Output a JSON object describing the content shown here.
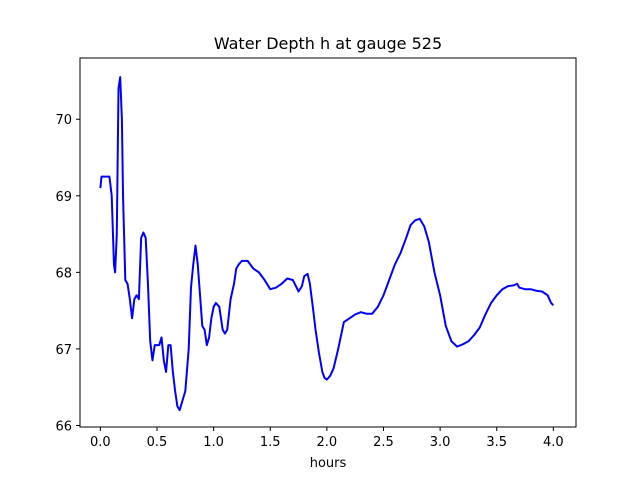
{
  "chart_data": {
    "type": "line",
    "title": "Water Depth h at gauge 525",
    "xlabel": "hours",
    "ylabel": "",
    "xlim": [
      -0.18,
      4.2
    ],
    "ylim": [
      65.98,
      70.8
    ],
    "xticks": [
      0.0,
      0.5,
      1.0,
      1.5,
      2.0,
      2.5,
      3.0,
      3.5,
      4.0
    ],
    "xtick_labels": [
      "0.0",
      "0.5",
      "1.0",
      "1.5",
      "2.0",
      "2.5",
      "3.0",
      "3.5",
      "4.0"
    ],
    "yticks": [
      66,
      67,
      68,
      69,
      70
    ],
    "ytick_labels": [
      "66",
      "67",
      "68",
      "69",
      "70"
    ],
    "grid": false,
    "line_color": "#0000ff",
    "series": [
      {
        "points": [
          [
            0.0,
            69.1
          ],
          [
            0.01,
            69.25
          ],
          [
            0.05,
            69.25
          ],
          [
            0.08,
            69.25
          ],
          [
            0.1,
            69.0
          ],
          [
            0.12,
            68.1
          ],
          [
            0.13,
            68.0
          ],
          [
            0.145,
            68.5
          ],
          [
            0.16,
            70.4
          ],
          [
            0.175,
            70.55
          ],
          [
            0.19,
            70.0
          ],
          [
            0.2,
            69.0
          ],
          [
            0.22,
            67.9
          ],
          [
            0.24,
            67.85
          ],
          [
            0.26,
            67.65
          ],
          [
            0.28,
            67.4
          ],
          [
            0.3,
            67.65
          ],
          [
            0.32,
            67.7
          ],
          [
            0.34,
            67.65
          ],
          [
            0.36,
            68.45
          ],
          [
            0.38,
            68.52
          ],
          [
            0.4,
            68.45
          ],
          [
            0.42,
            67.85
          ],
          [
            0.44,
            67.1
          ],
          [
            0.46,
            66.85
          ],
          [
            0.48,
            67.05
          ],
          [
            0.5,
            67.05
          ],
          [
            0.52,
            67.05
          ],
          [
            0.54,
            67.15
          ],
          [
            0.56,
            66.85
          ],
          [
            0.58,
            66.7
          ],
          [
            0.6,
            67.05
          ],
          [
            0.62,
            67.05
          ],
          [
            0.64,
            66.7
          ],
          [
            0.66,
            66.45
          ],
          [
            0.68,
            66.25
          ],
          [
            0.7,
            66.2
          ],
          [
            0.72,
            66.3
          ],
          [
            0.75,
            66.45
          ],
          [
            0.78,
            67.0
          ],
          [
            0.8,
            67.8
          ],
          [
            0.82,
            68.1
          ],
          [
            0.84,
            68.35
          ],
          [
            0.86,
            68.1
          ],
          [
            0.88,
            67.7
          ],
          [
            0.9,
            67.3
          ],
          [
            0.92,
            67.25
          ],
          [
            0.94,
            67.05
          ],
          [
            0.96,
            67.15
          ],
          [
            0.98,
            67.4
          ],
          [
            1.0,
            67.55
          ],
          [
            1.02,
            67.6
          ],
          [
            1.05,
            67.55
          ],
          [
            1.08,
            67.25
          ],
          [
            1.1,
            67.2
          ],
          [
            1.12,
            67.25
          ],
          [
            1.15,
            67.65
          ],
          [
            1.18,
            67.85
          ],
          [
            1.2,
            68.05
          ],
          [
            1.22,
            68.1
          ],
          [
            1.25,
            68.15
          ],
          [
            1.3,
            68.15
          ],
          [
            1.35,
            68.05
          ],
          [
            1.4,
            68.0
          ],
          [
            1.45,
            67.9
          ],
          [
            1.5,
            67.78
          ],
          [
            1.55,
            67.8
          ],
          [
            1.6,
            67.85
          ],
          [
            1.65,
            67.92
          ],
          [
            1.7,
            67.9
          ],
          [
            1.75,
            67.75
          ],
          [
            1.78,
            67.82
          ],
          [
            1.8,
            67.95
          ],
          [
            1.83,
            67.98
          ],
          [
            1.85,
            67.85
          ],
          [
            1.88,
            67.5
          ],
          [
            1.9,
            67.25
          ],
          [
            1.93,
            66.95
          ],
          [
            1.96,
            66.7
          ],
          [
            1.98,
            66.62
          ],
          [
            2.0,
            66.6
          ],
          [
            2.03,
            66.65
          ],
          [
            2.06,
            66.75
          ],
          [
            2.1,
            67.0
          ],
          [
            2.15,
            67.35
          ],
          [
            2.2,
            67.4
          ],
          [
            2.25,
            67.45
          ],
          [
            2.3,
            67.48
          ],
          [
            2.35,
            67.46
          ],
          [
            2.4,
            67.46
          ],
          [
            2.45,
            67.55
          ],
          [
            2.5,
            67.7
          ],
          [
            2.55,
            67.9
          ],
          [
            2.6,
            68.1
          ],
          [
            2.65,
            68.25
          ],
          [
            2.7,
            68.45
          ],
          [
            2.74,
            68.62
          ],
          [
            2.78,
            68.68
          ],
          [
            2.82,
            68.7
          ],
          [
            2.86,
            68.6
          ],
          [
            2.9,
            68.4
          ],
          [
            2.95,
            68.0
          ],
          [
            3.0,
            67.7
          ],
          [
            3.05,
            67.3
          ],
          [
            3.1,
            67.1
          ],
          [
            3.15,
            67.03
          ],
          [
            3.2,
            67.06
          ],
          [
            3.25,
            67.1
          ],
          [
            3.3,
            67.18
          ],
          [
            3.35,
            67.28
          ],
          [
            3.4,
            67.45
          ],
          [
            3.45,
            67.6
          ],
          [
            3.5,
            67.7
          ],
          [
            3.55,
            67.78
          ],
          [
            3.6,
            67.82
          ],
          [
            3.65,
            67.83
          ],
          [
            3.68,
            67.85
          ],
          [
            3.7,
            67.8
          ],
          [
            3.75,
            67.78
          ],
          [
            3.8,
            67.78
          ],
          [
            3.85,
            67.76
          ],
          [
            3.9,
            67.75
          ],
          [
            3.95,
            67.7
          ],
          [
            3.98,
            67.6
          ],
          [
            4.0,
            67.57
          ]
        ]
      }
    ]
  }
}
